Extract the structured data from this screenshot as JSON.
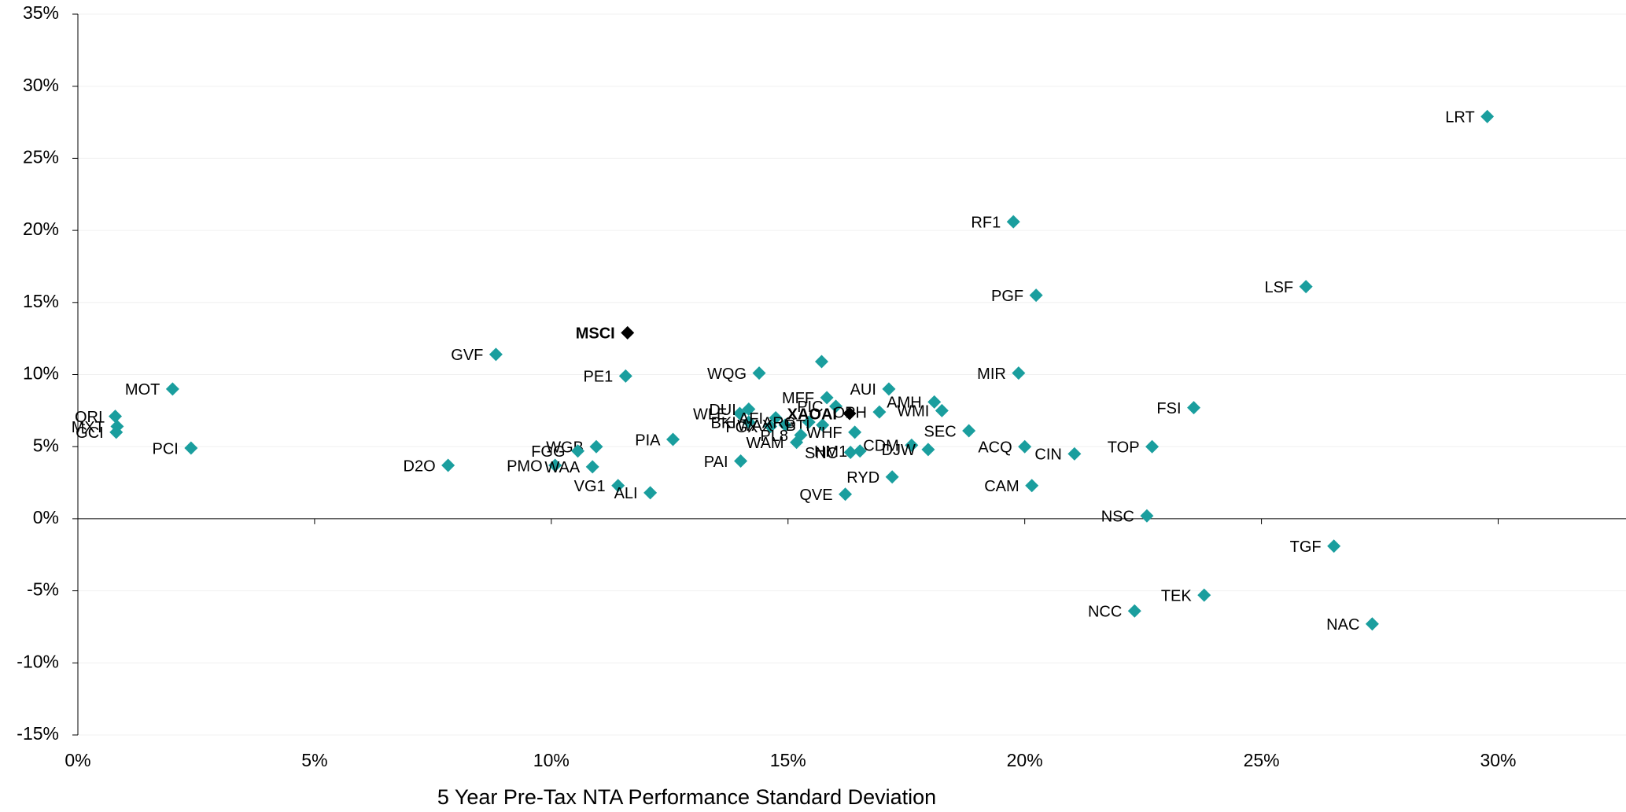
{
  "chart_data": {
    "type": "scatter",
    "x_label": "5 Year Pre-Tax NTA Performance Standard Deviation",
    "xlim": [
      0,
      32.7
    ],
    "ylim": [
      -15,
      35
    ],
    "xticks": [
      {
        "value": 0,
        "label": "0%"
      },
      {
        "value": 5,
        "label": "5%"
      },
      {
        "value": 10,
        "label": "10%"
      },
      {
        "value": 15,
        "label": "15%"
      },
      {
        "value": 20,
        "label": "20%"
      },
      {
        "value": 25,
        "label": "25%"
      },
      {
        "value": 30,
        "label": "30%"
      }
    ],
    "yticks": [
      {
        "value": -15,
        "label": "-15%"
      },
      {
        "value": -10,
        "label": "-10%"
      },
      {
        "value": -5,
        "label": "-5%"
      },
      {
        "value": 0,
        "label": "0%"
      },
      {
        "value": 5,
        "label": "5%"
      },
      {
        "value": 10,
        "label": "10%"
      },
      {
        "value": 15,
        "label": "15%"
      },
      {
        "value": 20,
        "label": "20%"
      },
      {
        "value": 25,
        "label": "25%"
      },
      {
        "value": 30,
        "label": "30%"
      },
      {
        "value": 35,
        "label": "35%"
      }
    ],
    "grid": true,
    "series": [
      {
        "color": "#1a9e9e",
        "bold": false,
        "labels": [
          "LRT",
          "RF1",
          "LSF",
          "PGF",
          "GVF",
          "PE1",
          "WQG",
          "MIR",
          "MOT",
          "QRI",
          "MXT",
          "GCI",
          "PCI",
          "D2O",
          "WGB",
          "FGG",
          "PMO",
          "WAA",
          "VG1",
          "ALI",
          "PIA",
          "PAI",
          "WLE",
          "DUI",
          "BKI",
          "AFI",
          "FGX",
          "WAX",
          "ARG",
          "MFF",
          "BTI",
          null,
          "PIC",
          "PL8",
          "WAM",
          "WHF",
          "SNC",
          "HM1",
          "CDM",
          "DJW",
          "OPH",
          "AUI",
          "AMH",
          "WMI",
          "SEC",
          "ACQ",
          "CIN",
          "CAM",
          "TOP",
          "FSI",
          "NSC",
          "TGF",
          "TEK",
          "NCC",
          "NAC",
          "RYD",
          "QVE"
        ],
        "x": [
          29.77,
          19.76,
          25.94,
          20.24,
          8.83,
          11.57,
          14.39,
          19.87,
          2.0,
          0.79,
          0.83,
          0.81,
          2.39,
          7.82,
          10.95,
          10.56,
          10.08,
          10.87,
          11.41,
          12.09,
          12.57,
          14.0,
          13.98,
          14.17,
          14.17,
          14.74,
          14.63,
          14.94,
          15.44,
          15.82,
          15.73,
          15.71,
          16.01,
          15.27,
          15.18,
          16.41,
          16.32,
          16.52,
          17.61,
          17.96,
          16.93,
          17.13,
          18.09,
          18.25,
          18.82,
          20.0,
          21.05,
          20.15,
          22.69,
          23.57,
          22.58,
          26.53,
          23.79,
          22.32,
          27.34,
          17.2,
          16.21
        ],
        "values": [
          27.9,
          20.6,
          16.1,
          15.5,
          11.4,
          9.9,
          10.1,
          10.1,
          9.0,
          7.1,
          6.4,
          6.0,
          4.9,
          3.7,
          5.0,
          4.7,
          3.7,
          3.6,
          2.3,
          1.8,
          5.5,
          4.0,
          7.3,
          7.6,
          6.7,
          7.0,
          6.4,
          6.5,
          6.7,
          8.4,
          6.5,
          10.9,
          7.8,
          5.8,
          5.3,
          6.0,
          4.6,
          4.7,
          5.1,
          4.8,
          7.4,
          9.0,
          8.1,
          7.5,
          6.1,
          5.0,
          4.5,
          2.3,
          5.0,
          7.7,
          0.2,
          -1.9,
          -5.3,
          -6.4,
          -7.3,
          2.9,
          1.7
        ]
      },
      {
        "color": "#000000",
        "bold": true,
        "labels": [
          "MSCI",
          "XAOAI"
        ],
        "x": [
          11.61,
          16.3
        ],
        "values": [
          12.9,
          7.3
        ]
      }
    ]
  }
}
